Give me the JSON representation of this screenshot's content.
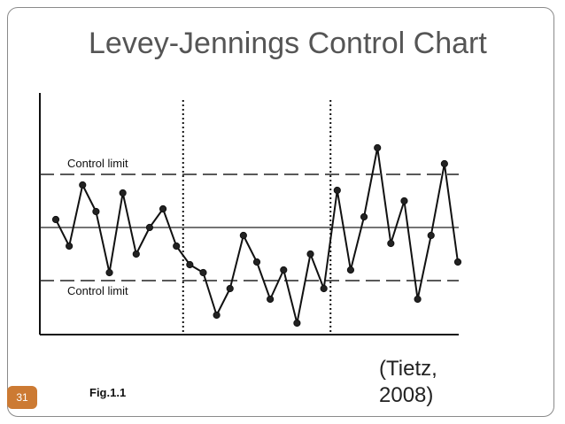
{
  "slide": {
    "title": "Levey-Jennings Control Chart",
    "page_number": "31",
    "figure_caption": "Fig.1.1",
    "citation": "(Tietz,\n2008)",
    "accent_color": "#cc7a33"
  },
  "chart_data": {
    "type": "line",
    "title": "",
    "xlabel": "",
    "ylabel": "",
    "mean": 0,
    "upper_limit": 2,
    "lower_limit": -2,
    "ylim": [
      -4,
      4
    ],
    "upper_limit_label": "Control limit",
    "lower_limit_label": "Control limit",
    "run_dividers_after_point": [
      9,
      20
    ],
    "series": [
      {
        "values": [
          0.3,
          -0.7,
          1.6,
          0.6,
          -1.7,
          1.3,
          -1.0,
          0.0,
          0.7,
          -0.7,
          -1.4,
          -1.7,
          -3.3,
          -2.3,
          -0.3,
          -1.3,
          -2.7,
          -1.6,
          -3.6,
          -1.0,
          -2.3,
          1.4,
          -1.6,
          0.4,
          3.0,
          -0.6,
          1.0,
          -2.7,
          -0.3,
          2.4,
          -1.3
        ]
      }
    ]
  }
}
